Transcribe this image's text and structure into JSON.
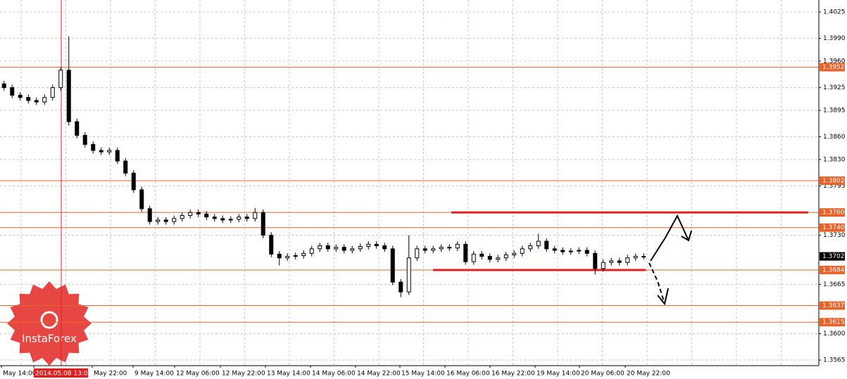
{
  "chart_data": {
    "type": "candlestick",
    "watermark": "InstaForex",
    "ylim": [
      1.35576,
      1.40408
    ],
    "yticks": [
      1.4025,
      {
        "value": 1.399,
        "label": "1.3990"
      },
      {
        "value": 1.396,
        "label": "1.3960"
      },
      1.3925,
      1.3895,
      {
        "value": 1.386,
        "label": "1.3860"
      },
      {
        "value": 1.383,
        "label": "1.3830"
      },
      1.3795,
      {
        "value": 1.373,
        "label": "1.3730"
      },
      1.3665,
      {
        "value": 1.36,
        "label": "1.3600"
      },
      1.3565
    ],
    "grid": true,
    "x_labels": [
      "May 14:00",
      "2014.05.08 13:00",
      "May 22:00",
      "9 May 14:00",
      "12 May 06:00",
      "12 May 22:00",
      "13 May 14:00",
      "14 May 06:00",
      "14 May 22:00",
      "15 May 14:00",
      "16 May 06:00",
      "16 May 22:00",
      "19 May 14:00",
      "20 May 06:00",
      "20 May 22:00"
    ],
    "levels": [
      1.3952,
      1.3802,
      {
        "value": 1.376,
        "label": "1.3760"
      },
      {
        "value": 1.374,
        "label": "1.3740"
      },
      1.3684,
      1.3637,
      1.3615
    ],
    "level_color": "#e8632a",
    "last_price": 1.3702,
    "trend_lines": [
      {
        "value": 1.376,
        "label": "1.3760"
      },
      1.3684
    ],
    "trend_color": "#e02020",
    "open": [
      1.393,
      1.3925,
      1.3915,
      1.3912,
      1.3908,
      1.3906,
      1.3912,
      1.3925,
      1.3948,
      1.388,
      1.3862,
      1.385,
      1.3842,
      1.384,
      1.3842,
      1.3828,
      1.3812,
      1.379,
      1.3765,
      1.3748,
      1.375,
      1.3748,
      1.3752,
      1.3756,
      1.376,
      1.3758,
      1.3754,
      1.3752,
      1.375,
      1.3751,
      1.3754,
      1.3752,
      1.376,
      1.373,
      1.3705,
      1.37,
      1.3702,
      1.3703,
      1.3706,
      1.3712,
      1.3716,
      1.3712,
      1.3714,
      1.371,
      1.3712,
      1.3715,
      1.3718,
      1.3716,
      1.3712,
      1.3668,
      1.3655,
      1.37,
      1.3712,
      1.371,
      1.3712,
      1.3714,
      1.3713,
      1.3718,
      1.3695,
      1.3705,
      1.3702,
      1.3698,
      1.37,
      1.3704,
      1.3706,
      1.3712,
      1.3716,
      1.3722,
      1.3712,
      1.371,
      1.3708,
      1.3709,
      1.371,
      1.3706,
      1.3686,
      1.3694,
      1.3696,
      1.3694,
      1.37,
      1.3702
    ],
    "high": [
      1.3934,
      1.3929,
      1.3919,
      1.3916,
      1.3912,
      1.3916,
      1.3929,
      1.3952,
      1.3993,
      1.3884,
      1.3866,
      1.3854,
      1.3846,
      1.3846,
      1.3846,
      1.3832,
      1.3816,
      1.3794,
      1.3769,
      1.3754,
      1.3754,
      1.3756,
      1.376,
      1.3764,
      1.3764,
      1.3762,
      1.3758,
      1.3756,
      1.3755,
      1.3758,
      1.3758,
      1.3766,
      1.3764,
      1.3734,
      1.3709,
      1.3706,
      1.3707,
      1.371,
      1.3716,
      1.372,
      1.372,
      1.3718,
      1.3718,
      1.3716,
      1.3719,
      1.3722,
      1.3722,
      1.372,
      1.3716,
      1.3672,
      1.373,
      1.3716,
      1.3716,
      1.3716,
      1.3718,
      1.3718,
      1.3722,
      1.3722,
      1.3709,
      1.3709,
      1.3706,
      1.3704,
      1.3708,
      1.371,
      1.3716,
      1.372,
      1.3732,
      1.3726,
      1.3716,
      1.3714,
      1.3713,
      1.3714,
      1.3714,
      1.371,
      1.3698,
      1.37,
      1.37,
      1.3704,
      1.3706,
      1.3706
    ],
    "low": [
      1.3921,
      1.3911,
      1.3908,
      1.3904,
      1.3902,
      1.3902,
      1.3908,
      1.3921,
      1.3875,
      1.3858,
      1.3846,
      1.3838,
      1.3836,
      1.3836,
      1.3824,
      1.3808,
      1.3786,
      1.3761,
      1.3744,
      1.3744,
      1.3744,
      1.3744,
      1.3748,
      1.3752,
      1.3754,
      1.375,
      1.3748,
      1.3746,
      1.3746,
      1.3747,
      1.3748,
      1.3748,
      1.3726,
      1.3701,
      1.369,
      1.3696,
      1.3698,
      1.3699,
      1.3702,
      1.3708,
      1.3708,
      1.3708,
      1.3706,
      1.3706,
      1.3708,
      1.3711,
      1.3712,
      1.3708,
      1.3664,
      1.3648,
      1.3651,
      1.3696,
      1.3706,
      1.3706,
      1.3708,
      1.3709,
      1.3709,
      1.3691,
      1.3691,
      1.3698,
      1.3694,
      1.3694,
      1.3696,
      1.37,
      1.3702,
      1.3708,
      1.3712,
      1.3708,
      1.3706,
      1.3704,
      1.3704,
      1.3705,
      1.3702,
      1.3678,
      1.3682,
      1.369,
      1.369,
      1.369,
      1.3696,
      1.3698
    ],
    "close": [
      1.3925,
      1.3915,
      1.3912,
      1.3908,
      1.3906,
      1.3912,
      1.3925,
      1.3948,
      1.388,
      1.3862,
      1.385,
      1.3842,
      1.384,
      1.3842,
      1.3828,
      1.3812,
      1.379,
      1.3765,
      1.3748,
      1.375,
      1.3748,
      1.3752,
      1.3756,
      1.376,
      1.3758,
      1.3754,
      1.3752,
      1.375,
      1.3751,
      1.3754,
      1.3752,
      1.376,
      1.373,
      1.3705,
      1.37,
      1.3702,
      1.3703,
      1.3706,
      1.3712,
      1.3716,
      1.3712,
      1.3714,
      1.371,
      1.3712,
      1.3715,
      1.3718,
      1.3716,
      1.3712,
      1.3668,
      1.3655,
      1.37,
      1.3712,
      1.371,
      1.3712,
      1.3714,
      1.3713,
      1.3718,
      1.3695,
      1.3705,
      1.3702,
      1.3698,
      1.37,
      1.3704,
      1.3706,
      1.3712,
      1.3716,
      1.3722,
      1.3712,
      1.371,
      1.3708,
      1.3709,
      1.371,
      1.3706,
      1.3686,
      1.3694,
      1.3696,
      1.3694,
      1.37,
      1.3702,
      1.3702
    ]
  }
}
